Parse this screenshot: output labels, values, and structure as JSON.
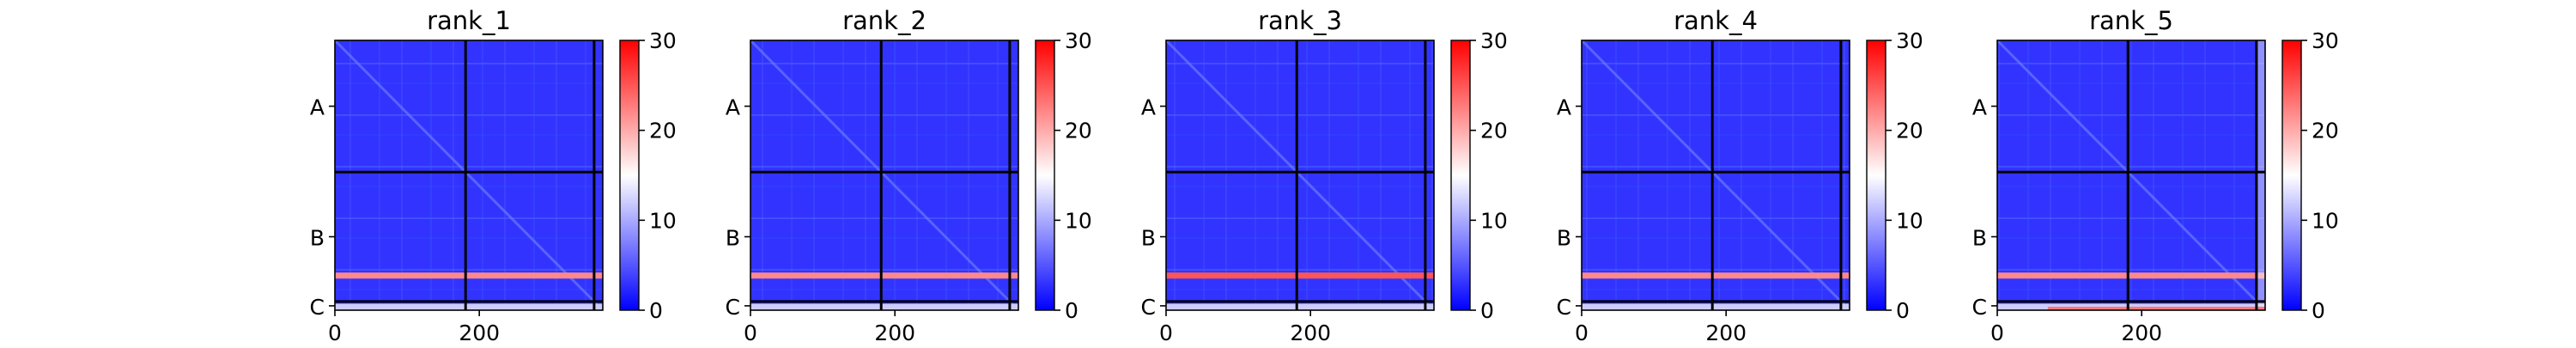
{
  "chart_data": [
    {
      "type": "heatmap",
      "title": "rank_1",
      "xlabel": "",
      "ylabel": "",
      "xlim": [
        0,
        371
      ],
      "x_ticks": [
        0,
        200
      ],
      "x_tick_labels": [
        "0",
        "200"
      ],
      "y_segments": [
        "A",
        "B",
        "C"
      ],
      "segment_boundaries": [
        0,
        181,
        359,
        371
      ],
      "colorbar": {
        "min": 0,
        "max": 30,
        "ticks": [
          0,
          10,
          20,
          30
        ],
        "tick_labels": [
          "0",
          "10",
          "20",
          "30"
        ],
        "colormap": "bwr"
      },
      "background_value": 3,
      "row_bands": [
        {
          "segment": "B",
          "position": 0.8,
          "value": 22
        },
        {
          "segment": "C",
          "position": 0.6,
          "value": 12
        }
      ],
      "column_bands": [],
      "segment_C_bottom_value": null
    },
    {
      "type": "heatmap",
      "title": "rank_2",
      "xlabel": "",
      "ylabel": "",
      "xlim": [
        0,
        371
      ],
      "x_ticks": [
        0,
        200
      ],
      "x_tick_labels": [
        "0",
        "200"
      ],
      "y_segments": [
        "A",
        "B",
        "C"
      ],
      "segment_boundaries": [
        0,
        181,
        359,
        371
      ],
      "colorbar": {
        "min": 0,
        "max": 30,
        "ticks": [
          0,
          10,
          20,
          30
        ],
        "tick_labels": [
          "0",
          "10",
          "20",
          "30"
        ],
        "colormap": "bwr"
      },
      "background_value": 3,
      "row_bands": [
        {
          "segment": "B",
          "position": 0.8,
          "value": 22
        },
        {
          "segment": "C",
          "position": 0.6,
          "value": 12
        }
      ],
      "column_bands": [],
      "segment_C_bottom_value": null
    },
    {
      "type": "heatmap",
      "title": "rank_3",
      "xlabel": "",
      "ylabel": "",
      "xlim": [
        0,
        371
      ],
      "x_ticks": [
        0,
        200
      ],
      "x_tick_labels": [
        "0",
        "200"
      ],
      "y_segments": [
        "A",
        "B",
        "C"
      ],
      "segment_boundaries": [
        0,
        181,
        359,
        371
      ],
      "colorbar": {
        "min": 0,
        "max": 30,
        "ticks": [
          0,
          10,
          20,
          30
        ],
        "tick_labels": [
          "0",
          "10",
          "20",
          "30"
        ],
        "colormap": "bwr"
      },
      "background_value": 3,
      "row_bands": [
        {
          "segment": "B",
          "position": 0.8,
          "value": 25
        },
        {
          "segment": "C",
          "position": 0.6,
          "value": 12
        }
      ],
      "column_bands": [],
      "segment_C_bottom_value": null
    },
    {
      "type": "heatmap",
      "title": "rank_4",
      "xlabel": "",
      "ylabel": "",
      "xlim": [
        0,
        371
      ],
      "x_ticks": [
        0,
        200
      ],
      "x_tick_labels": [
        "0",
        "200"
      ],
      "y_segments": [
        "A",
        "B",
        "C"
      ],
      "segment_boundaries": [
        0,
        181,
        359,
        371
      ],
      "colorbar": {
        "min": 0,
        "max": 30,
        "ticks": [
          0,
          10,
          20,
          30
        ],
        "tick_labels": [
          "0",
          "10",
          "20",
          "30"
        ],
        "colormap": "bwr"
      },
      "background_value": 3,
      "row_bands": [
        {
          "segment": "B",
          "position": 0.8,
          "value": 22
        },
        {
          "segment": "C",
          "position": 0.6,
          "value": 12
        }
      ],
      "column_bands": [],
      "segment_C_bottom_value": null
    },
    {
      "type": "heatmap",
      "title": "rank_5",
      "xlabel": "",
      "ylabel": "",
      "xlim": [
        0,
        371
      ],
      "x_ticks": [
        0,
        200
      ],
      "x_tick_labels": [
        "0",
        "200"
      ],
      "y_segments": [
        "A",
        "B",
        "C"
      ],
      "segment_boundaries": [
        0,
        181,
        359,
        371
      ],
      "colorbar": {
        "min": 0,
        "max": 30,
        "ticks": [
          0,
          10,
          20,
          30
        ],
        "tick_labels": [
          "0",
          "10",
          "20",
          "30"
        ],
        "colormap": "bwr"
      },
      "background_value": 3,
      "row_bands": [
        {
          "segment": "B",
          "position": 0.8,
          "value": 22
        },
        {
          "segment": "C",
          "position": 0.6,
          "value": 12
        }
      ],
      "column_bands": [
        {
          "segment": "C",
          "x_start": 359,
          "x_end": 371,
          "value": 14
        }
      ],
      "segment_C_bottom_value": 23
    }
  ]
}
